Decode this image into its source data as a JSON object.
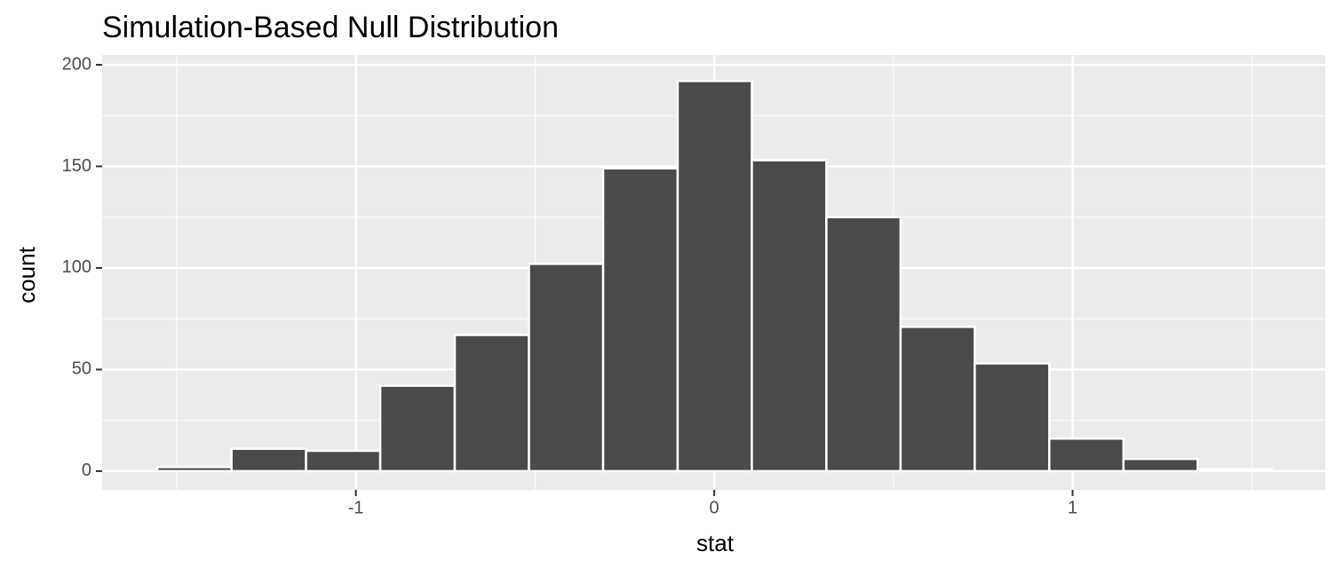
{
  "chart_data": {
    "type": "histogram",
    "title": "Simulation-Based Null Distribution",
    "x_label": "stat",
    "y_label": "count",
    "bins": [
      -1.554,
      -1.347,
      -1.139,
      -0.932,
      -0.724,
      -0.517,
      -0.31,
      -0.102,
      0.105,
      0.313,
      0.52,
      0.727,
      0.935,
      1.142,
      1.349,
      1.557
    ],
    "values": [
      2,
      11,
      10,
      42,
      67,
      102,
      149,
      192,
      153,
      125,
      71,
      53,
      16,
      6,
      1
    ],
    "color": "#4a4a4a",
    "xlim": [
      -1.708,
      1.705
    ],
    "ylim": [
      -9.2,
      204.8
    ],
    "xticks": [
      -1,
      0,
      1
    ],
    "yticks": [
      0,
      50,
      100,
      150,
      200
    ],
    "minor_xticks": [
      -1.5,
      -0.5,
      0.5,
      1.5
    ],
    "minor_yticks": [
      25,
      75,
      125,
      175
    ],
    "grid": true
  }
}
